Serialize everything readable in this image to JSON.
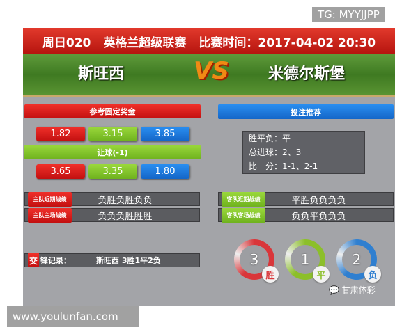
{
  "header": {
    "matchday": "周日020",
    "league": "英格兰超级联赛",
    "time_label": "比赛时间：2017-04-02 20:30"
  },
  "teams": {
    "home": "斯旺西",
    "vs": "VS",
    "away": "米德尔斯堡"
  },
  "odds": {
    "title": "参考固定奖金",
    "row1": [
      "1.82",
      "3.15",
      "3.85"
    ],
    "handicap_title": "让球(-1)",
    "row2": [
      "3.65",
      "3.35",
      "1.80"
    ]
  },
  "recommend": {
    "title": "投注推荐",
    "items": [
      "胜平负：平",
      "总进球：2、3",
      "比　分：1-1、2-1"
    ]
  },
  "records": {
    "home_recent": {
      "tag": "主队近期战绩",
      "value": "负胜负胜负负"
    },
    "home_home": {
      "tag": "主队主场战绩",
      "value": "负负负胜胜胜"
    },
    "away_recent": {
      "tag": "客队近期战绩",
      "value": "平胜负负负负"
    },
    "away_away": {
      "tag": "客队客场战绩",
      "value": "负负平负负负"
    },
    "h2h": {
      "tag": "交",
      "label": "锋记录：",
      "value": "斯旺西  3胜1平2负"
    }
  },
  "summary": [
    {
      "count": "3",
      "label": "胜",
      "color": "#d9363a"
    },
    {
      "count": "1",
      "label": "平",
      "color": "#8cbf2a"
    },
    {
      "count": "2",
      "label": "负",
      "color": "#2f7fd0"
    }
  ],
  "brand": "甘肃体彩",
  "watermarks": {
    "top": "TG: MYYJJPP",
    "bottom": "www.youlunfan.com"
  }
}
